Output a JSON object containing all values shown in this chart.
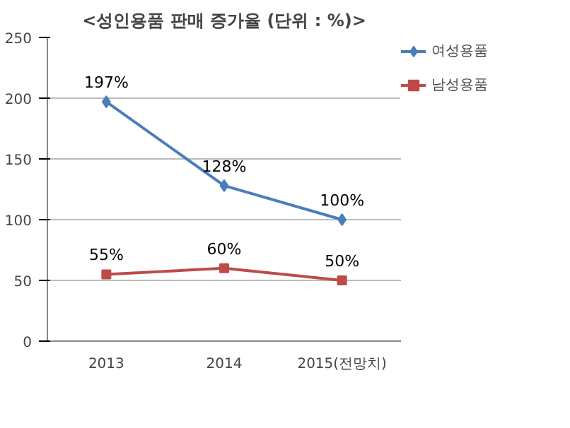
{
  "chart_data": {
    "type": "line",
    "title": "<성인용품 판매 증가율 (단위 : %)>",
    "categories": [
      "2013",
      "2014",
      "2015(전망치)"
    ],
    "series": [
      {
        "name": "여성용품",
        "color": "#4a7ebb",
        "values": [
          197,
          128,
          100
        ],
        "marker": "diamond",
        "value_labels": [
          "197%",
          "128%",
          "100%"
        ]
      },
      {
        "name": "남성용품",
        "color": "#be4b48",
        "values": [
          55,
          60,
          50
        ],
        "marker": "square",
        "value_labels": [
          "55%",
          "60%",
          "50%"
        ]
      }
    ],
    "ylim": [
      0,
      250
    ],
    "yticks": [
      0,
      50,
      100,
      150,
      200,
      250
    ],
    "grid": "y",
    "legend": "right",
    "line_style": "solid"
  }
}
